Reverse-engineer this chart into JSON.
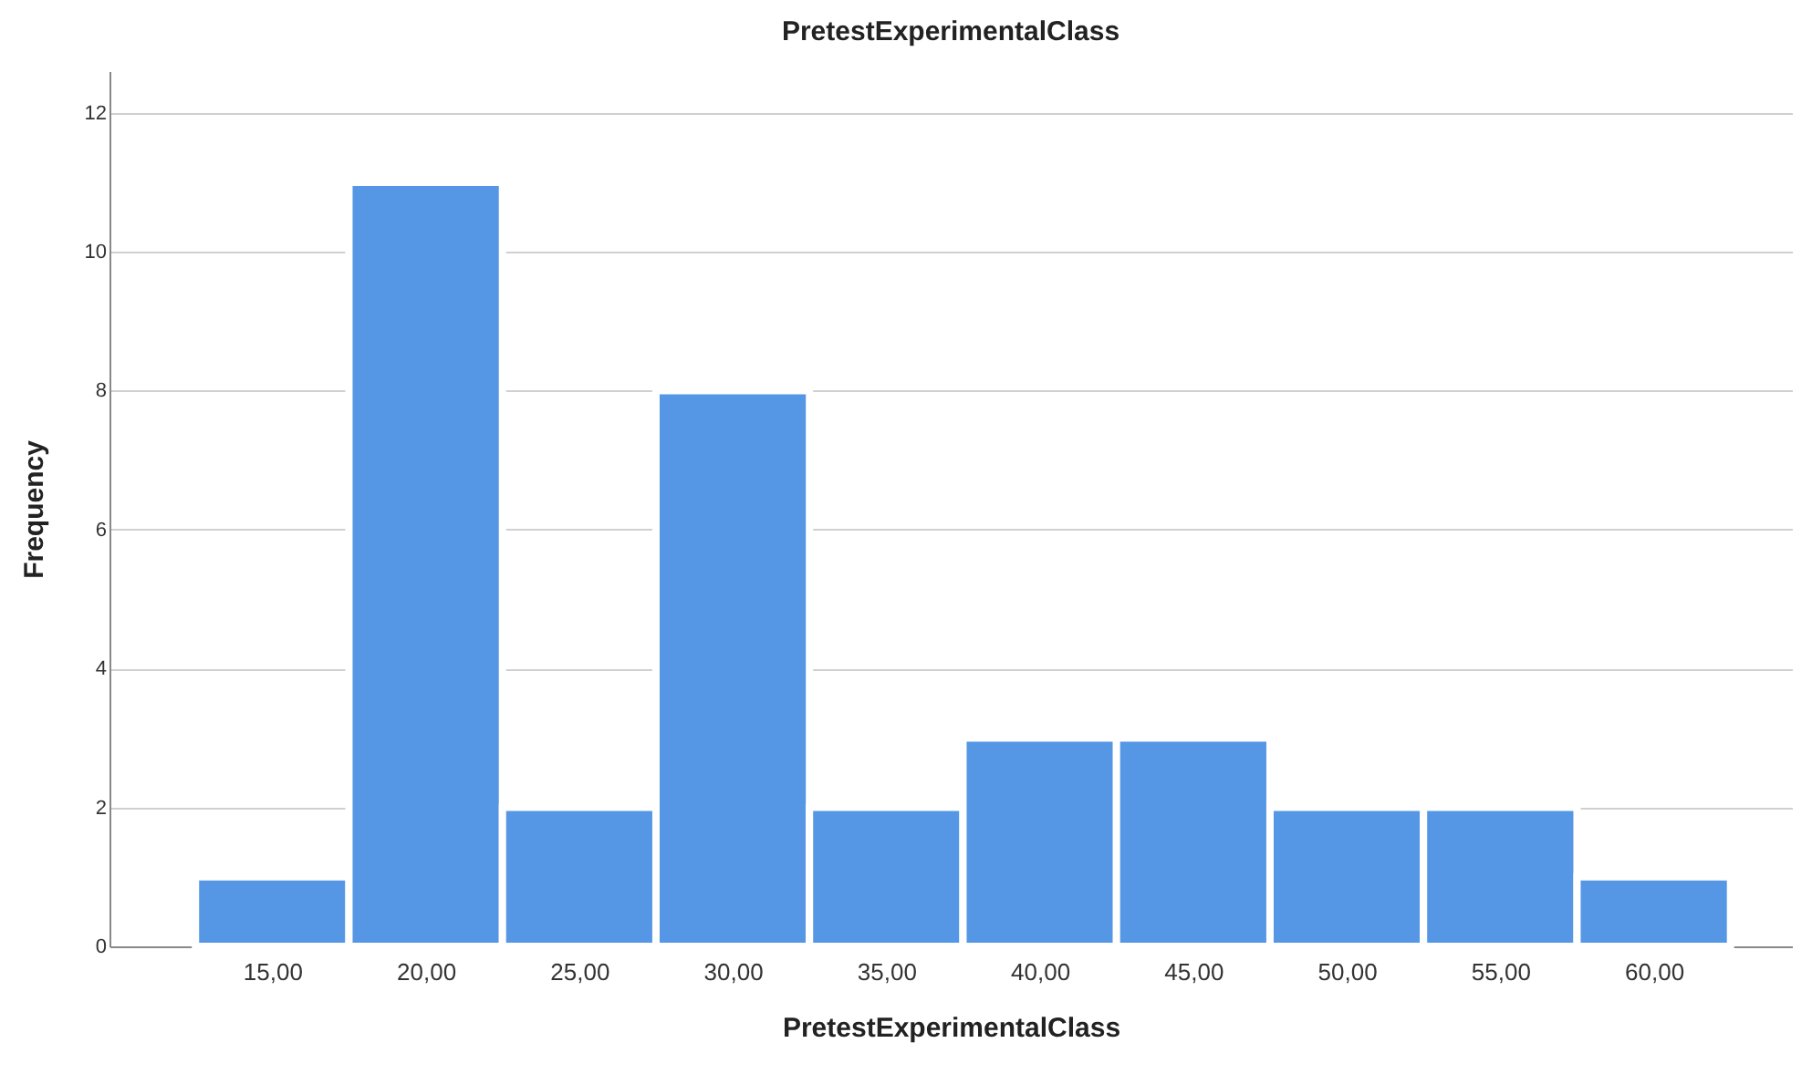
{
  "chart_data": {
    "type": "histogram",
    "title": "PretestExperimentalClass",
    "xlabel": "PretestExperimentalClass",
    "ylabel": "Frequency",
    "bins": [
      12.5,
      17.5,
      22.5,
      27.5,
      32.5,
      37.5,
      42.5,
      47.5,
      52.5,
      57.5,
      62.5
    ],
    "values": [
      1,
      11,
      2,
      8,
      2,
      3,
      3,
      2,
      2,
      1
    ],
    "color": "#5597e4",
    "xlim": [
      9.7,
      64.5
    ],
    "xticks": [
      {
        "value": 15,
        "label": "15,00"
      },
      {
        "value": 20,
        "label": "20,00"
      },
      {
        "value": 25,
        "label": "25,00"
      },
      {
        "value": 30,
        "label": "30,00"
      },
      {
        "value": 35,
        "label": "35,00"
      },
      {
        "value": 40,
        "label": "40,00"
      },
      {
        "value": 45,
        "label": "45,00"
      },
      {
        "value": 50,
        "label": "50,00"
      },
      {
        "value": 55,
        "label": "55,00"
      },
      {
        "value": 60,
        "label": "60,00"
      }
    ],
    "ylim": [
      0,
      12.6
    ],
    "yticks": [
      0,
      2,
      4,
      6,
      8,
      10,
      12
    ],
    "grid": "y"
  }
}
